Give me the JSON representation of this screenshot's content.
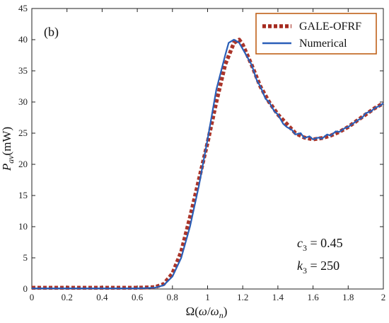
{
  "chart_data": {
    "type": "line",
    "panel_label": "(b)",
    "xlim": [
      0,
      2
    ],
    "ylim": [
      0,
      45
    ],
    "xticks": [
      0,
      0.2,
      0.4,
      0.6,
      0.8,
      1,
      1.2,
      1.4,
      1.6,
      1.8,
      2
    ],
    "yticks": [
      0,
      5,
      10,
      15,
      20,
      25,
      30,
      35,
      40,
      45
    ],
    "xtick_labels": [
      "0",
      "0.2",
      "0.4",
      "0.6",
      "0.8",
      "1",
      "1.2",
      "1.4",
      "1.6",
      "1.8",
      "2"
    ],
    "ytick_labels": [
      "0",
      "5",
      "10",
      "15",
      "20",
      "25",
      "30",
      "35",
      "40",
      "45"
    ],
    "xlabel": {
      "main": "Ω(",
      "omega": "ω",
      "slash": "/",
      "omega_n": "ω",
      "sub": "n",
      "close": ")"
    },
    "ylabel": {
      "var": "P",
      "sub": "av",
      "unit": "(mW)"
    },
    "annotations": {
      "c3": {
        "var": "c",
        "sub": "3",
        "eq": " = 0.45"
      },
      "k3": {
        "var": "k",
        "sub": "3",
        "eq": " = 250"
      }
    },
    "legend_position": "top-right",
    "series": [
      {
        "name": "GALE-OFRF",
        "color": "#a52a1f",
        "style": "dotted-thick",
        "x": [
          0,
          0.1,
          0.2,
          0.3,
          0.4,
          0.5,
          0.6,
          0.7,
          0.75,
          0.8,
          0.85,
          0.9,
          0.95,
          1.0,
          1.05,
          1.1,
          1.15,
          1.18,
          1.2,
          1.25,
          1.3,
          1.35,
          1.4,
          1.45,
          1.5,
          1.55,
          1.6,
          1.65,
          1.7,
          1.75,
          1.8,
          1.85,
          1.9,
          1.95,
          2.0
        ],
        "y": [
          0.2,
          0.2,
          0.2,
          0.2,
          0.2,
          0.2,
          0.2,
          0.3,
          0.8,
          2.5,
          6,
          11.5,
          17.5,
          23.5,
          30,
          36,
          39.5,
          40,
          39.2,
          36,
          32.5,
          30,
          28,
          26.5,
          25,
          24.3,
          24,
          24.2,
          24.6,
          25.2,
          26,
          27,
          28,
          29,
          29.8
        ]
      },
      {
        "name": "Numerical",
        "color": "#2a5fb8",
        "style": "solid",
        "x": [
          0,
          0.1,
          0.2,
          0.3,
          0.4,
          0.5,
          0.6,
          0.7,
          0.75,
          0.8,
          0.85,
          0.9,
          0.95,
          1.0,
          1.05,
          1.1,
          1.12,
          1.15,
          1.18,
          1.2,
          1.22,
          1.25,
          1.28,
          1.3,
          1.33,
          1.35,
          1.38,
          1.4,
          1.43,
          1.45,
          1.48,
          1.5,
          1.53,
          1.55,
          1.58,
          1.6,
          1.63,
          1.65,
          1.68,
          1.7,
          1.73,
          1.75,
          1.78,
          1.8,
          1.83,
          1.85,
          1.88,
          1.9,
          1.93,
          1.95,
          1.98,
          2.0
        ],
        "y": [
          0.1,
          0.1,
          0.1,
          0.1,
          0.1,
          0.1,
          0.1,
          0.2,
          0.6,
          2.0,
          5,
          10,
          16.5,
          24,
          32,
          37.5,
          39.5,
          40,
          39.5,
          38.5,
          37.5,
          36,
          33.5,
          32.5,
          30.5,
          30,
          28.5,
          28,
          26.5,
          26,
          25.5,
          24.8,
          25,
          24.2,
          24.5,
          24,
          24.3,
          24.1,
          24.8,
          24.6,
          25.3,
          25.2,
          25.8,
          26,
          26.6,
          27,
          27.5,
          28.2,
          28.5,
          29,
          29.4,
          29.8
        ]
      }
    ]
  }
}
